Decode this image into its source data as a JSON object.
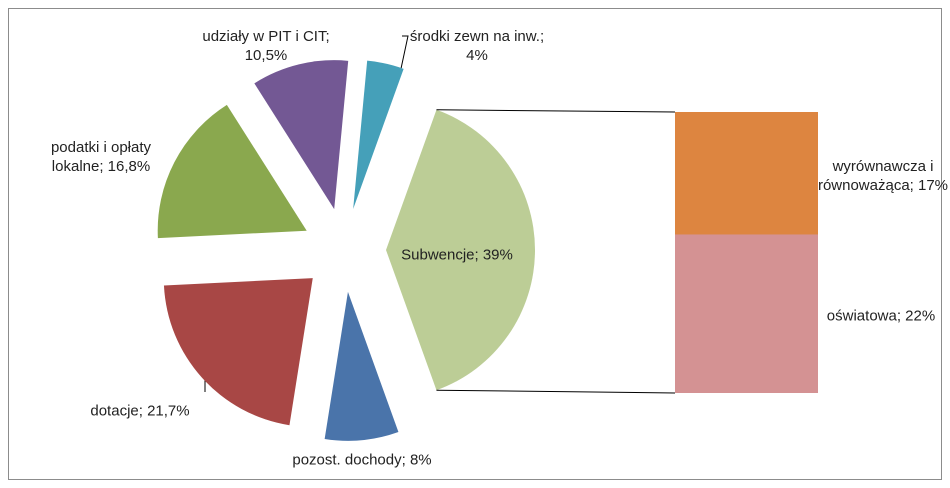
{
  "chart_data": {
    "type": "bar-of-pie",
    "pie": {
      "values": [
        39,
        8,
        21.7,
        16.8,
        10.5,
        4
      ],
      "value_labels": [
        "Subwencje; 39%",
        "pozost. dochody; 8%",
        "dotacje; 21,7%",
        "podatki i opłaty lokalne; 16,8%",
        "udziały w PIT i CIT; 10,5%",
        "środki zewn na inw.; 4%"
      ],
      "colors": [
        "#bccd96",
        "#4a74aa",
        "#a84745",
        "#8aa84e",
        "#735894",
        "#45a0b9"
      ]
    },
    "bar": {
      "values": [
        17,
        22
      ],
      "value_labels": [
        "wyrównawcza i równoważąca; 17%",
        "oświatowa; 22%"
      ],
      "colors": [
        "#dd8540",
        "#d49293"
      ]
    }
  }
}
